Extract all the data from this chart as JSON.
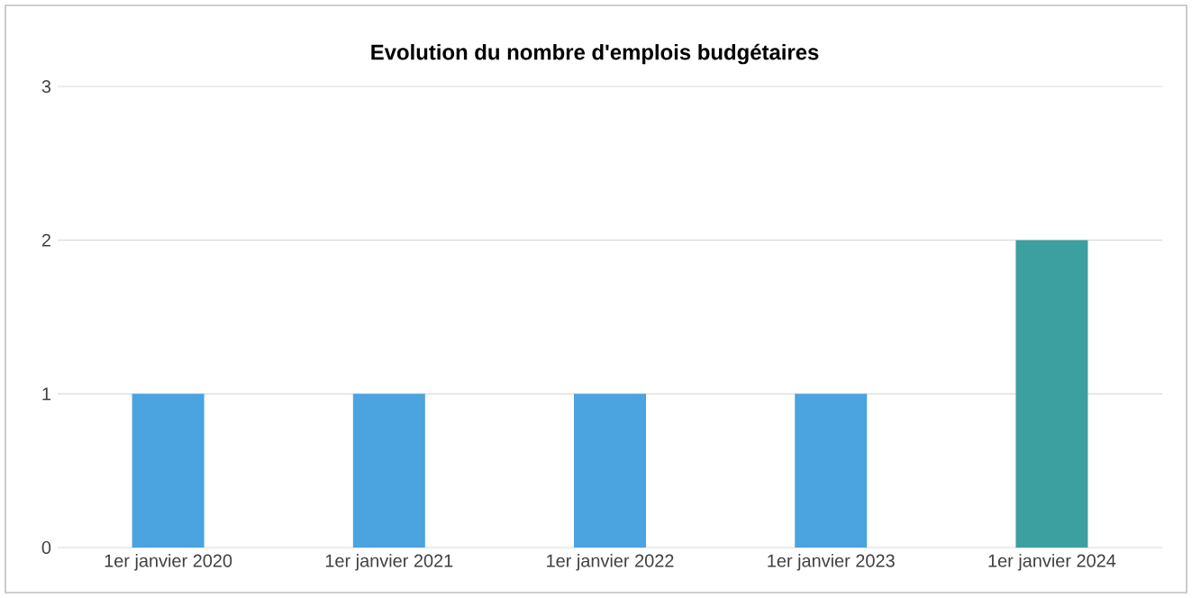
{
  "chart_data": {
    "type": "bar",
    "title": "Evolution du nombre d'emplois budgétaires",
    "categories": [
      "1er janvier 2020",
      "1er janvier 2021",
      "1er janvier 2022",
      "1er janvier 2023",
      "1er janvier 2024"
    ],
    "values": [
      1,
      1,
      1,
      1,
      2
    ],
    "colors": [
      "#4ba3e0",
      "#4ba3e0",
      "#4ba3e0",
      "#4ba3e0",
      "#3c9fa0"
    ],
    "ylim": [
      0,
      3
    ],
    "yticks": [
      0,
      1,
      2,
      3
    ],
    "grid": "y"
  }
}
